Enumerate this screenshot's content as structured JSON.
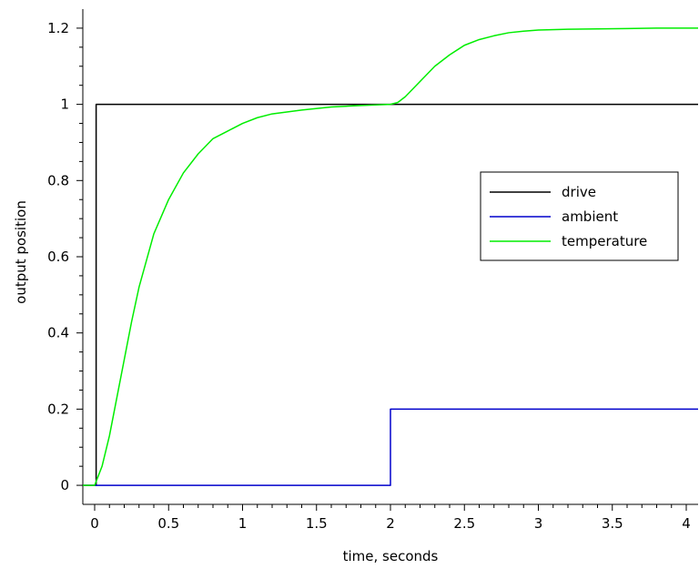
{
  "chart_data": {
    "type": "line",
    "title": "",
    "xlabel": "time, seconds",
    "ylabel": "output position",
    "xlim": [
      -0.08,
      4.08
    ],
    "ylim": [
      -0.05,
      1.25
    ],
    "xticks": [
      0,
      0.5,
      1,
      1.5,
      2,
      2.5,
      3,
      3.5,
      4
    ],
    "xtick_labels": [
      "0",
      "0.5",
      "1",
      "1.5",
      "2",
      "2.5",
      "3",
      "3.5",
      "4"
    ],
    "yticks": [
      0,
      0.2,
      0.4,
      0.6,
      0.8,
      1,
      1.2
    ],
    "ytick_labels": [
      "0",
      "0.2",
      "0.4",
      "0.6",
      "0.8",
      "1",
      "1.2"
    ],
    "grid": false,
    "legend_position": "right",
    "series": [
      {
        "name": "drive",
        "color": "#000000",
        "x": [
          -0.08,
          0.01,
          0.01,
          4.08
        ],
        "y": [
          0,
          0,
          1,
          1
        ]
      },
      {
        "name": "ambient",
        "color": "#0000cc",
        "x": [
          -0.08,
          2.0,
          2.0,
          4.08
        ],
        "y": [
          0,
          0,
          0.2,
          0.2
        ]
      },
      {
        "name": "temperature",
        "color": "#00ee00",
        "x": [
          -0.08,
          0,
          0.05,
          0.1,
          0.15,
          0.2,
          0.25,
          0.3,
          0.35,
          0.4,
          0.5,
          0.6,
          0.7,
          0.8,
          0.9,
          1.0,
          1.1,
          1.2,
          1.4,
          1.6,
          1.8,
          2.0,
          2.05,
          2.1,
          2.15,
          2.2,
          2.25,
          2.3,
          2.4,
          2.5,
          2.6,
          2.7,
          2.8,
          2.9,
          3.0,
          3.2,
          3.4,
          3.6,
          3.8,
          4.08
        ],
        "y": [
          0,
          0,
          0.05,
          0.13,
          0.23,
          0.33,
          0.43,
          0.52,
          0.59,
          0.66,
          0.75,
          0.82,
          0.87,
          0.91,
          0.93,
          0.95,
          0.965,
          0.975,
          0.985,
          0.993,
          0.997,
          1.0,
          1.005,
          1.02,
          1.04,
          1.06,
          1.08,
          1.1,
          1.13,
          1.155,
          1.17,
          1.18,
          1.188,
          1.192,
          1.195,
          1.197,
          1.198,
          1.199,
          1.2,
          1.2
        ]
      }
    ]
  }
}
